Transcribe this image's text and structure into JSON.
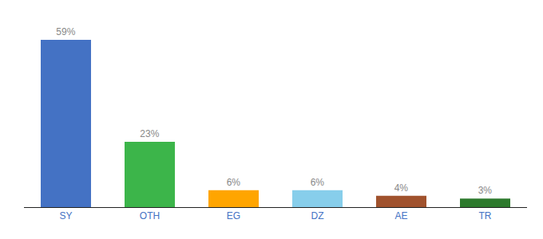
{
  "chart_data": {
    "type": "bar",
    "categories": [
      "SY",
      "OTH",
      "EG",
      "DZ",
      "AE",
      "TR"
    ],
    "values": [
      59,
      23,
      6,
      6,
      4,
      3
    ],
    "value_labels": [
      "59%",
      "23%",
      "6%",
      "6%",
      "4%",
      "3%"
    ],
    "colors": [
      "#4472C4",
      "#3CB54A",
      "#FFA500",
      "#87CEEB",
      "#A0522D",
      "#2D7A2D"
    ],
    "ylim": [
      0,
      66
    ],
    "data_labels": true,
    "tick_labels": "x",
    "grid": false
  }
}
